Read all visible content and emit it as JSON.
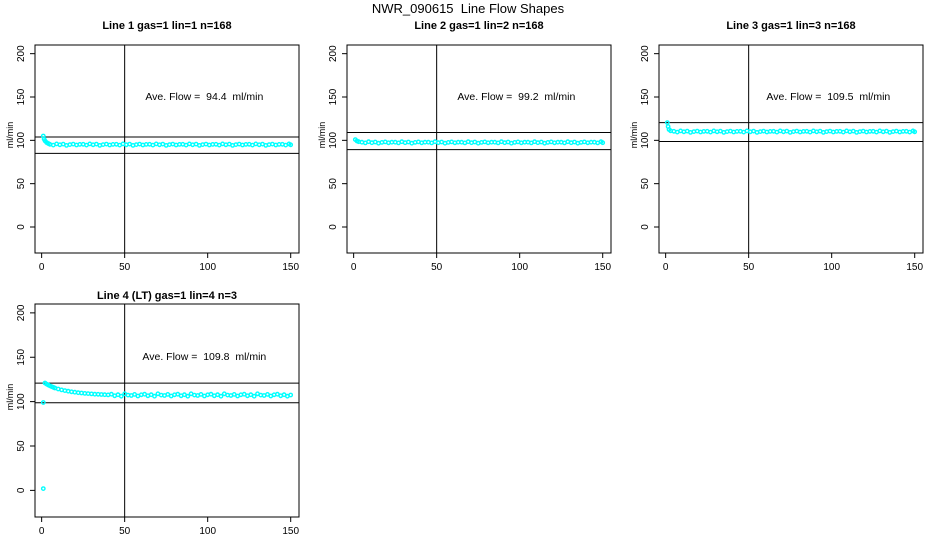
{
  "figure": {
    "title": "NWR_090615  Line Flow Shapes"
  },
  "colors": {
    "marker": "#00FFFF",
    "axis": "#000000",
    "background": "#FFFFFF"
  },
  "chart_data": [
    {
      "type": "scatter",
      "title": "Line 1 gas=1 lin=1 n=168",
      "gas": 1,
      "lin": 1,
      "n": 168,
      "annotation": "Ave. Flow =  94.4  ml/min",
      "ave_flow_ml_min": 94.4,
      "ylabel": "ml/min",
      "xticks": [
        0,
        50,
        100,
        150
      ],
      "yticks": [
        0,
        50,
        100,
        150,
        200
      ],
      "xlim": [
        -4,
        155
      ],
      "ylim": [
        -30,
        210
      ],
      "vline_x": 50,
      "hlines": [
        103.8,
        85.0
      ],
      "points": [
        [
          1,
          105
        ],
        [
          1.5,
          101.5
        ],
        [
          2,
          99.5
        ],
        [
          3,
          97.5
        ],
        [
          4,
          96.3
        ],
        [
          5,
          95.4
        ],
        [
          7,
          94.5
        ],
        [
          9,
          95.9
        ],
        [
          11,
          94.8
        ],
        [
          13,
          95.6
        ],
        [
          15,
          94.2
        ],
        [
          17,
          95.1
        ],
        [
          19,
          95.7
        ],
        [
          21,
          94.6
        ],
        [
          23,
          95.3
        ],
        [
          25,
          95.4
        ],
        [
          27,
          94.5
        ],
        [
          29,
          95.9
        ],
        [
          31,
          94.8
        ],
        [
          33,
          95.6
        ],
        [
          35,
          94.2
        ],
        [
          37,
          95.1
        ],
        [
          39,
          95.7
        ],
        [
          41,
          94.6
        ],
        [
          43,
          95.3
        ],
        [
          45,
          95.4
        ],
        [
          47,
          94.5
        ],
        [
          49,
          95.9
        ],
        [
          51,
          94.8
        ],
        [
          53,
          95.6
        ],
        [
          55,
          94.2
        ],
        [
          57,
          95.1
        ],
        [
          59,
          95.7
        ],
        [
          61,
          94.6
        ],
        [
          63,
          95.3
        ],
        [
          65,
          95.4
        ],
        [
          67,
          94.5
        ],
        [
          69,
          95.9
        ],
        [
          71,
          94.8
        ],
        [
          73,
          95.6
        ],
        [
          75,
          94.2
        ],
        [
          77,
          95.1
        ],
        [
          79,
          95.7
        ],
        [
          81,
          94.6
        ],
        [
          83,
          95.3
        ],
        [
          85,
          95.4
        ],
        [
          87,
          94.5
        ],
        [
          89,
          95.9
        ],
        [
          91,
          94.8
        ],
        [
          93,
          95.6
        ],
        [
          95,
          94.2
        ],
        [
          97,
          95.1
        ],
        [
          99,
          95.7
        ],
        [
          101,
          94.6
        ],
        [
          103,
          95.3
        ],
        [
          105,
          95.4
        ],
        [
          107,
          94.5
        ],
        [
          109,
          95.9
        ],
        [
          111,
          94.8
        ],
        [
          113,
          95.6
        ],
        [
          115,
          94.2
        ],
        [
          117,
          95.1
        ],
        [
          119,
          95.7
        ],
        [
          121,
          94.6
        ],
        [
          123,
          95.3
        ],
        [
          125,
          95.4
        ],
        [
          127,
          94.5
        ],
        [
          129,
          95.9
        ],
        [
          131,
          94.8
        ],
        [
          133,
          95.6
        ],
        [
          135,
          94.2
        ],
        [
          137,
          95.1
        ],
        [
          139,
          95.7
        ],
        [
          141,
          94.6
        ],
        [
          143,
          95.3
        ],
        [
          145,
          95.4
        ],
        [
          147,
          94.5
        ],
        [
          149,
          95.9
        ],
        [
          150,
          94.8
        ]
      ]
    },
    {
      "type": "scatter",
      "title": "Line 2 gas=1 lin=2 n=168",
      "gas": 1,
      "lin": 2,
      "n": 168,
      "annotation": "Ave. Flow =  99.2  ml/min",
      "ave_flow_ml_min": 99.2,
      "ylabel": "ml/min",
      "xticks": [
        0,
        50,
        100,
        150
      ],
      "yticks": [
        0,
        50,
        100,
        150,
        200
      ],
      "xlim": [
        -4,
        155
      ],
      "ylim": [
        -30,
        210
      ],
      "vline_x": 50,
      "hlines": [
        109.1,
        89.3
      ],
      "points": [
        [
          1,
          100.8
        ],
        [
          2,
          99.2
        ],
        [
          3,
          98.4
        ],
        [
          5,
          97.9
        ],
        [
          7,
          97.0
        ],
        [
          9,
          98.4
        ],
        [
          11,
          97.3
        ],
        [
          13,
          98.1
        ],
        [
          15,
          96.7
        ],
        [
          17,
          97.6
        ],
        [
          19,
          98.2
        ],
        [
          21,
          97.1
        ],
        [
          23,
          97.8
        ],
        [
          25,
          97.9
        ],
        [
          27,
          97.0
        ],
        [
          29,
          98.4
        ],
        [
          31,
          97.3
        ],
        [
          33,
          98.1
        ],
        [
          35,
          96.7
        ],
        [
          37,
          97.6
        ],
        [
          39,
          98.2
        ],
        [
          41,
          97.1
        ],
        [
          43,
          97.8
        ],
        [
          45,
          97.9
        ],
        [
          47,
          97.0
        ],
        [
          49,
          98.4
        ],
        [
          51,
          97.3
        ],
        [
          53,
          98.1
        ],
        [
          55,
          96.7
        ],
        [
          57,
          97.6
        ],
        [
          59,
          98.2
        ],
        [
          61,
          97.1
        ],
        [
          63,
          97.8
        ],
        [
          65,
          97.9
        ],
        [
          67,
          97.0
        ],
        [
          69,
          98.4
        ],
        [
          71,
          97.3
        ],
        [
          73,
          98.1
        ],
        [
          75,
          96.7
        ],
        [
          77,
          97.6
        ],
        [
          79,
          98.2
        ],
        [
          81,
          97.1
        ],
        [
          83,
          97.8
        ],
        [
          85,
          97.9
        ],
        [
          87,
          97.0
        ],
        [
          89,
          98.4
        ],
        [
          91,
          97.3
        ],
        [
          93,
          98.1
        ],
        [
          95,
          96.7
        ],
        [
          97,
          97.6
        ],
        [
          99,
          98.2
        ],
        [
          101,
          97.1
        ],
        [
          103,
          97.8
        ],
        [
          105,
          97.9
        ],
        [
          107,
          97.0
        ],
        [
          109,
          98.4
        ],
        [
          111,
          97.3
        ],
        [
          113,
          98.1
        ],
        [
          115,
          96.7
        ],
        [
          117,
          97.6
        ],
        [
          119,
          98.2
        ],
        [
          121,
          97.1
        ],
        [
          123,
          97.8
        ],
        [
          125,
          97.9
        ],
        [
          127,
          97.0
        ],
        [
          129,
          98.4
        ],
        [
          131,
          97.3
        ],
        [
          133,
          98.1
        ],
        [
          135,
          96.7
        ],
        [
          137,
          97.6
        ],
        [
          139,
          98.2
        ],
        [
          141,
          97.1
        ],
        [
          143,
          97.8
        ],
        [
          145,
          97.9
        ],
        [
          147,
          97.0
        ],
        [
          149,
          98.4
        ],
        [
          150,
          97.3
        ]
      ]
    },
    {
      "type": "scatter",
      "title": "Line 3 gas=1 lin=3 n=168",
      "gas": 1,
      "lin": 3,
      "n": 168,
      "annotation": "Ave. Flow =  109.5  ml/min",
      "ave_flow_ml_min": 109.5,
      "ylabel": "ml/min",
      "xticks": [
        0,
        50,
        100,
        150
      ],
      "yticks": [
        0,
        50,
        100,
        150,
        200
      ],
      "xlim": [
        -4,
        155
      ],
      "ylim": [
        -30,
        210
      ],
      "vline_x": 50,
      "hlines": [
        120.5,
        98.6
      ],
      "points": [
        [
          1,
          120.5
        ],
        [
          1.5,
          116
        ],
        [
          2,
          112.5
        ],
        [
          3,
          111
        ],
        [
          5,
          110.4
        ],
        [
          7,
          109.5
        ],
        [
          9,
          110.9
        ],
        [
          11,
          109.8
        ],
        [
          13,
          110.6
        ],
        [
          15,
          109.2
        ],
        [
          17,
          110.1
        ],
        [
          19,
          110.7
        ],
        [
          21,
          109.6
        ],
        [
          23,
          110.3
        ],
        [
          25,
          110.4
        ],
        [
          27,
          109.5
        ],
        [
          29,
          110.9
        ],
        [
          31,
          109.8
        ],
        [
          33,
          110.6
        ],
        [
          35,
          109.2
        ],
        [
          37,
          110.1
        ],
        [
          39,
          110.7
        ],
        [
          41,
          109.6
        ],
        [
          43,
          110.3
        ],
        [
          45,
          110.4
        ],
        [
          47,
          109.5
        ],
        [
          49,
          110.9
        ],
        [
          51,
          109.8
        ],
        [
          53,
          110.6
        ],
        [
          55,
          109.2
        ],
        [
          57,
          110.1
        ],
        [
          59,
          110.7
        ],
        [
          61,
          109.6
        ],
        [
          63,
          110.3
        ],
        [
          65,
          110.4
        ],
        [
          67,
          109.5
        ],
        [
          69,
          110.9
        ],
        [
          71,
          109.8
        ],
        [
          73,
          110.6
        ],
        [
          75,
          109.2
        ],
        [
          77,
          110.1
        ],
        [
          79,
          110.7
        ],
        [
          81,
          109.6
        ],
        [
          83,
          110.3
        ],
        [
          85,
          110.4
        ],
        [
          87,
          109.5
        ],
        [
          89,
          110.9
        ],
        [
          91,
          109.8
        ],
        [
          93,
          110.6
        ],
        [
          95,
          109.2
        ],
        [
          97,
          110.1
        ],
        [
          99,
          110.7
        ],
        [
          101,
          109.6
        ],
        [
          103,
          110.3
        ],
        [
          105,
          110.4
        ],
        [
          107,
          109.5
        ],
        [
          109,
          110.9
        ],
        [
          111,
          109.8
        ],
        [
          113,
          110.6
        ],
        [
          115,
          109.2
        ],
        [
          117,
          110.1
        ],
        [
          119,
          110.7
        ],
        [
          121,
          109.6
        ],
        [
          123,
          110.3
        ],
        [
          125,
          110.4
        ],
        [
          127,
          109.5
        ],
        [
          129,
          110.9
        ],
        [
          131,
          109.8
        ],
        [
          133,
          110.6
        ],
        [
          135,
          109.2
        ],
        [
          137,
          110.1
        ],
        [
          139,
          110.7
        ],
        [
          141,
          109.6
        ],
        [
          143,
          110.3
        ],
        [
          145,
          110.4
        ],
        [
          147,
          109.5
        ],
        [
          149,
          110.9
        ],
        [
          150,
          109.8
        ]
      ]
    },
    {
      "type": "scatter",
      "title": "Line 4 (LT) gas=1 lin=4 n=3",
      "gas": 1,
      "lin": 4,
      "n": 3,
      "annotation": "Ave. Flow =  109.8  ml/min",
      "ave_flow_ml_min": 109.8,
      "ylabel": "ml/min",
      "xticks": [
        0,
        50,
        100,
        150
      ],
      "yticks": [
        0,
        50,
        100,
        150,
        200
      ],
      "xlim": [
        -4,
        155
      ],
      "ylim": [
        -30,
        210
      ],
      "vline_x": 50,
      "hlines": [
        120.8,
        98.8
      ],
      "points": [
        [
          1,
          2
        ],
        [
          1,
          99
        ],
        [
          2,
          121
        ],
        [
          3,
          119.8
        ],
        [
          4,
          118.7
        ],
        [
          5,
          117.8
        ],
        [
          6,
          116.9
        ],
        [
          7,
          116.1
        ],
        [
          8,
          115.4
        ],
        [
          10,
          114.2
        ],
        [
          12,
          113.2
        ],
        [
          14,
          112.4
        ],
        [
          16,
          111.7
        ],
        [
          18,
          111.1
        ],
        [
          20,
          110.6
        ],
        [
          22,
          110.1
        ],
        [
          24,
          109.7
        ],
        [
          26,
          109.3
        ],
        [
          28,
          109.0
        ],
        [
          30,
          108.7
        ],
        [
          32,
          108.4
        ],
        [
          34,
          108.2
        ],
        [
          36,
          108.0
        ],
        [
          38,
          107.8
        ],
        [
          40,
          107.6
        ],
        [
          42,
          108.4
        ],
        [
          44,
          106.6
        ],
        [
          46,
          107.8
        ],
        [
          48,
          106.1
        ],
        [
          50,
          108.8
        ],
        [
          52,
          107.4
        ],
        [
          54,
          106.9
        ],
        [
          56,
          108.1
        ],
        [
          58,
          106.3
        ],
        [
          60,
          107.7
        ],
        [
          62,
          108.4
        ],
        [
          64,
          106.6
        ],
        [
          66,
          107.8
        ],
        [
          68,
          106.1
        ],
        [
          70,
          108.8
        ],
        [
          72,
          107.4
        ],
        [
          74,
          106.9
        ],
        [
          76,
          108.1
        ],
        [
          78,
          106.3
        ],
        [
          80,
          107.7
        ],
        [
          82,
          108.4
        ],
        [
          84,
          106.6
        ],
        [
          86,
          107.8
        ],
        [
          88,
          106.1
        ],
        [
          90,
          108.8
        ],
        [
          92,
          107.4
        ],
        [
          94,
          106.9
        ],
        [
          96,
          108.1
        ],
        [
          98,
          106.3
        ],
        [
          100,
          107.7
        ],
        [
          102,
          108.4
        ],
        [
          104,
          106.6
        ],
        [
          106,
          107.8
        ],
        [
          108,
          106.1
        ],
        [
          110,
          108.8
        ],
        [
          112,
          107.4
        ],
        [
          114,
          106.9
        ],
        [
          116,
          108.1
        ],
        [
          118,
          106.3
        ],
        [
          120,
          107.7
        ],
        [
          122,
          108.4
        ],
        [
          124,
          106.6
        ],
        [
          126,
          107.8
        ],
        [
          128,
          106.1
        ],
        [
          130,
          108.8
        ],
        [
          132,
          107.4
        ],
        [
          134,
          106.9
        ],
        [
          136,
          108.1
        ],
        [
          138,
          106.3
        ],
        [
          140,
          107.7
        ],
        [
          142,
          108.4
        ],
        [
          144,
          106.6
        ],
        [
          146,
          107.8
        ],
        [
          148,
          106.1
        ],
        [
          150,
          107.5
        ]
      ]
    }
  ]
}
